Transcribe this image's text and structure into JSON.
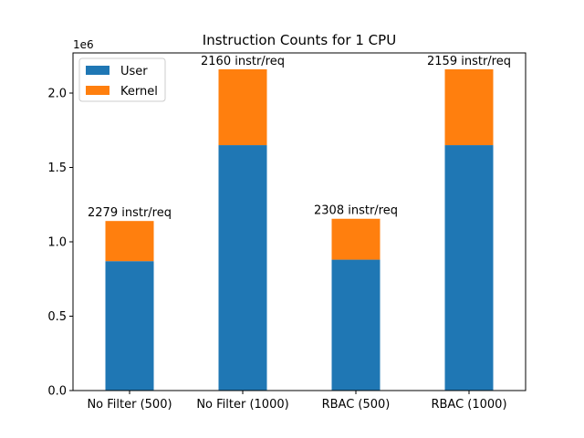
{
  "chart_data": {
    "type": "bar",
    "stacked": true,
    "title": "Instruction Counts for 1 CPU",
    "xlabel": "",
    "ylabel": "",
    "y_offset_label": "1e6",
    "ylim": [
      0,
      2.27
    ],
    "y_ticks": [
      0.0,
      0.5,
      1.0,
      1.5,
      2.0
    ],
    "y_tick_labels": [
      "0.0",
      "0.5",
      "1.0",
      "1.5",
      "2.0"
    ],
    "categories": [
      "No Filter (500)",
      "No Filter (1000)",
      "RBAC (500)",
      "RBAC (1000)"
    ],
    "series": [
      {
        "name": "User",
        "color": "#1f77b4",
        "values": [
          0.87,
          1.65,
          0.88,
          1.65
        ]
      },
      {
        "name": "Kernel",
        "color": "#ff7f0e",
        "values": [
          0.27,
          0.51,
          0.275,
          0.51
        ]
      }
    ],
    "bar_labels": [
      "2279 instr/req",
      "2160 instr/req",
      "2308 instr/req",
      "2159 instr/req"
    ],
    "legend_position": "upper-left",
    "grid": false
  }
}
